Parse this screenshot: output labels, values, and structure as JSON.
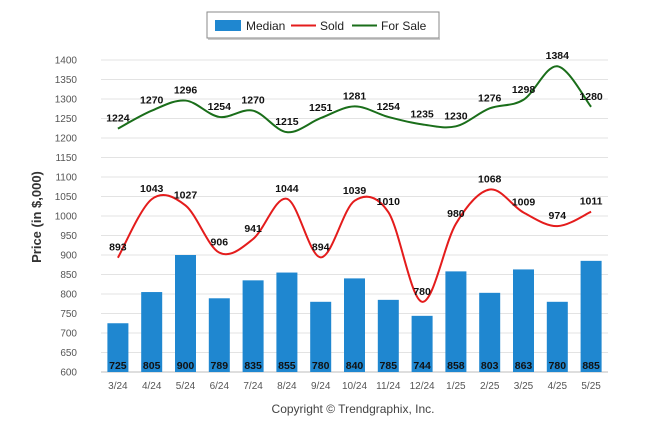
{
  "chart_data": {
    "type": "bar",
    "categories": [
      "3/24",
      "4/24",
      "5/24",
      "6/24",
      "7/24",
      "8/24",
      "9/24",
      "10/24",
      "11/24",
      "12/24",
      "1/25",
      "2/25",
      "3/25",
      "4/25",
      "5/25"
    ],
    "series": [
      {
        "name": "Median",
        "type": "bar",
        "color": "#1f87d0",
        "values": [
          725,
          805,
          900,
          789,
          835,
          855,
          780,
          840,
          785,
          744,
          858,
          803,
          863,
          780,
          885
        ]
      },
      {
        "name": "Sold",
        "type": "line",
        "color": "#e41c1c",
        "values": [
          893,
          1043,
          1027,
          906,
          941,
          1044,
          894,
          1039,
          1010,
          780,
          980,
          1068,
          1009,
          974,
          1011
        ]
      },
      {
        "name": "For Sale",
        "type": "line",
        "color": "#1a6e1a",
        "values": [
          1224,
          1270,
          1296,
          1254,
          1270,
          1215,
          1251,
          1281,
          1254,
          1235,
          1230,
          1276,
          1298,
          1384,
          1280
        ]
      }
    ],
    "ylabel": "Price (in $,000)",
    "ylim": [
      600,
      1400
    ],
    "yticks": [
      600,
      650,
      700,
      750,
      800,
      850,
      900,
      950,
      1000,
      1050,
      1100,
      1150,
      1200,
      1250,
      1300,
      1350,
      1400
    ],
    "grid": true,
    "legend_position": "top-center",
    "credit": "Copyright © Trendgraphix, Inc."
  }
}
